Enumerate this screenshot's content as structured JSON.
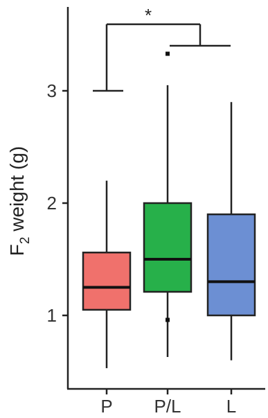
{
  "chart_data": {
    "type": "box",
    "ylabel_main": "F",
    "ylabel_sub": "2",
    "ylabel_rest": " weight (g)",
    "categories": [
      "P",
      "P/L",
      "L"
    ],
    "yticks": [
      1,
      2,
      3
    ],
    "ylim": [
      0.35,
      3.75
    ],
    "grid": false,
    "legend": "none",
    "boxes": [
      {
        "name": "P",
        "color": "#f0716c",
        "whisker_low": 0.53,
        "q1": 1.05,
        "median": 1.25,
        "q3": 1.56,
        "whisker_high": 2.2,
        "outliers": []
      },
      {
        "name": "P/L",
        "color": "#27b04a",
        "whisker_low": 0.63,
        "q1": 1.21,
        "median": 1.5,
        "q3": 2.0,
        "whisker_high": 3.05,
        "outliers": [
          0.96,
          3.33
        ]
      },
      {
        "name": "L",
        "color": "#6c8fd3",
        "whisker_low": 0.6,
        "q1": 1.0,
        "median": 1.3,
        "q3": 1.9,
        "whisker_high": 2.9,
        "outliers": []
      }
    ],
    "significance": {
      "label": "*",
      "left_group": "P",
      "right_groups": [
        "P/L",
        "L"
      ]
    }
  }
}
